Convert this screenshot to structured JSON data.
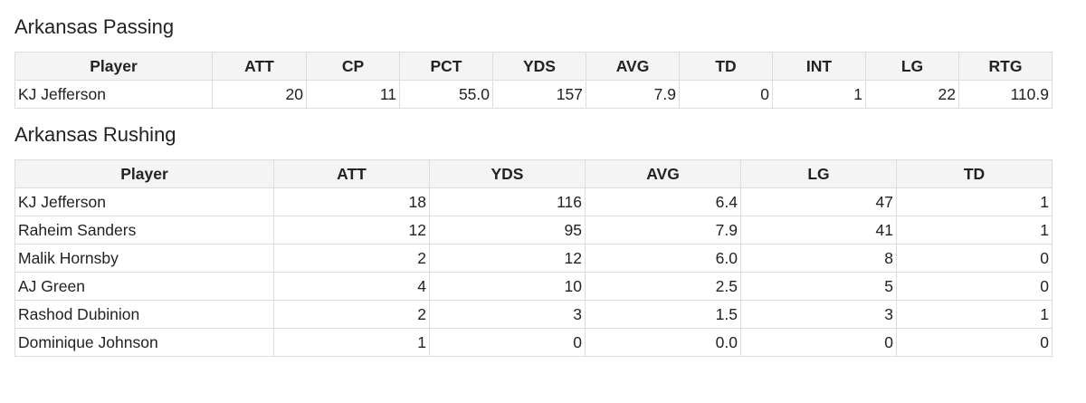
{
  "sections": [
    {
      "title": "Arkansas Passing",
      "table": {
        "headers": [
          "Player",
          "ATT",
          "CP",
          "PCT",
          "YDS",
          "AVG",
          "TD",
          "INT",
          "LG",
          "RTG"
        ],
        "rows": [
          [
            "KJ Jefferson",
            "20",
            "11",
            "55.0",
            "157",
            "7.9",
            "0",
            "1",
            "22",
            "110.9"
          ]
        ]
      }
    },
    {
      "title": "Arkansas Rushing",
      "table": {
        "headers": [
          "Player",
          "ATT",
          "YDS",
          "AVG",
          "LG",
          "TD"
        ],
        "rows": [
          [
            "KJ Jefferson",
            "18",
            "116",
            "6.4",
            "47",
            "1"
          ],
          [
            "Raheim Sanders",
            "12",
            "95",
            "7.9",
            "41",
            "1"
          ],
          [
            "Malik Hornsby",
            "2",
            "12",
            "6.0",
            "8",
            "0"
          ],
          [
            "AJ Green",
            "4",
            "10",
            "2.5",
            "5",
            "0"
          ],
          [
            "Rashod Dubinion",
            "2",
            "3",
            "1.5",
            "3",
            "1"
          ],
          [
            "Dominique Johnson",
            "1",
            "0",
            "0.0",
            "0",
            "0"
          ]
        ]
      }
    }
  ]
}
